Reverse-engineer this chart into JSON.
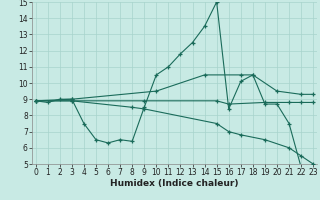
{
  "xlabel": "Humidex (Indice chaleur)",
  "xlim": [
    0,
    23
  ],
  "ylim": [
    5,
    15
  ],
  "yticks": [
    5,
    6,
    7,
    8,
    9,
    10,
    11,
    12,
    13,
    14,
    15
  ],
  "xticks": [
    0,
    1,
    2,
    3,
    4,
    5,
    6,
    7,
    8,
    9,
    10,
    11,
    12,
    13,
    14,
    15,
    16,
    17,
    18,
    19,
    20,
    21,
    22,
    23
  ],
  "background_color": "#c8eae4",
  "grid_color": "#a8d4cc",
  "line_color": "#1a6b5a",
  "lines": [
    {
      "x": [
        0,
        1,
        2,
        3,
        4,
        5,
        6,
        7,
        8,
        9,
        10,
        11,
        12,
        13,
        14,
        15,
        16,
        17,
        18,
        19,
        20,
        21,
        22,
        23
      ],
      "y": [
        8.9,
        8.8,
        9.0,
        9.0,
        7.5,
        6.5,
        6.3,
        6.5,
        6.4,
        8.5,
        10.5,
        11.0,
        11.8,
        12.5,
        13.5,
        15.0,
        8.4,
        10.1,
        10.5,
        8.7,
        8.7,
        7.5,
        4.8,
        4.7
      ]
    },
    {
      "x": [
        0,
        3,
        10,
        14,
        17,
        18,
        20,
        22,
        23
      ],
      "y": [
        8.9,
        9.0,
        9.5,
        10.5,
        10.5,
        10.5,
        9.5,
        9.3,
        9.3
      ]
    },
    {
      "x": [
        0,
        3,
        9,
        15,
        16,
        19,
        21,
        22,
        23
      ],
      "y": [
        8.9,
        8.9,
        8.9,
        8.9,
        8.7,
        8.8,
        8.8,
        8.8,
        8.8
      ]
    },
    {
      "x": [
        0,
        3,
        8,
        9,
        15,
        16,
        17,
        19,
        21,
        22,
        23
      ],
      "y": [
        8.9,
        8.9,
        8.5,
        8.4,
        7.5,
        7.0,
        6.8,
        6.5,
        6.0,
        5.5,
        5.0
      ]
    }
  ],
  "font_color": "#222222",
  "tick_fontsize": 5.5,
  "label_fontsize": 6.5
}
